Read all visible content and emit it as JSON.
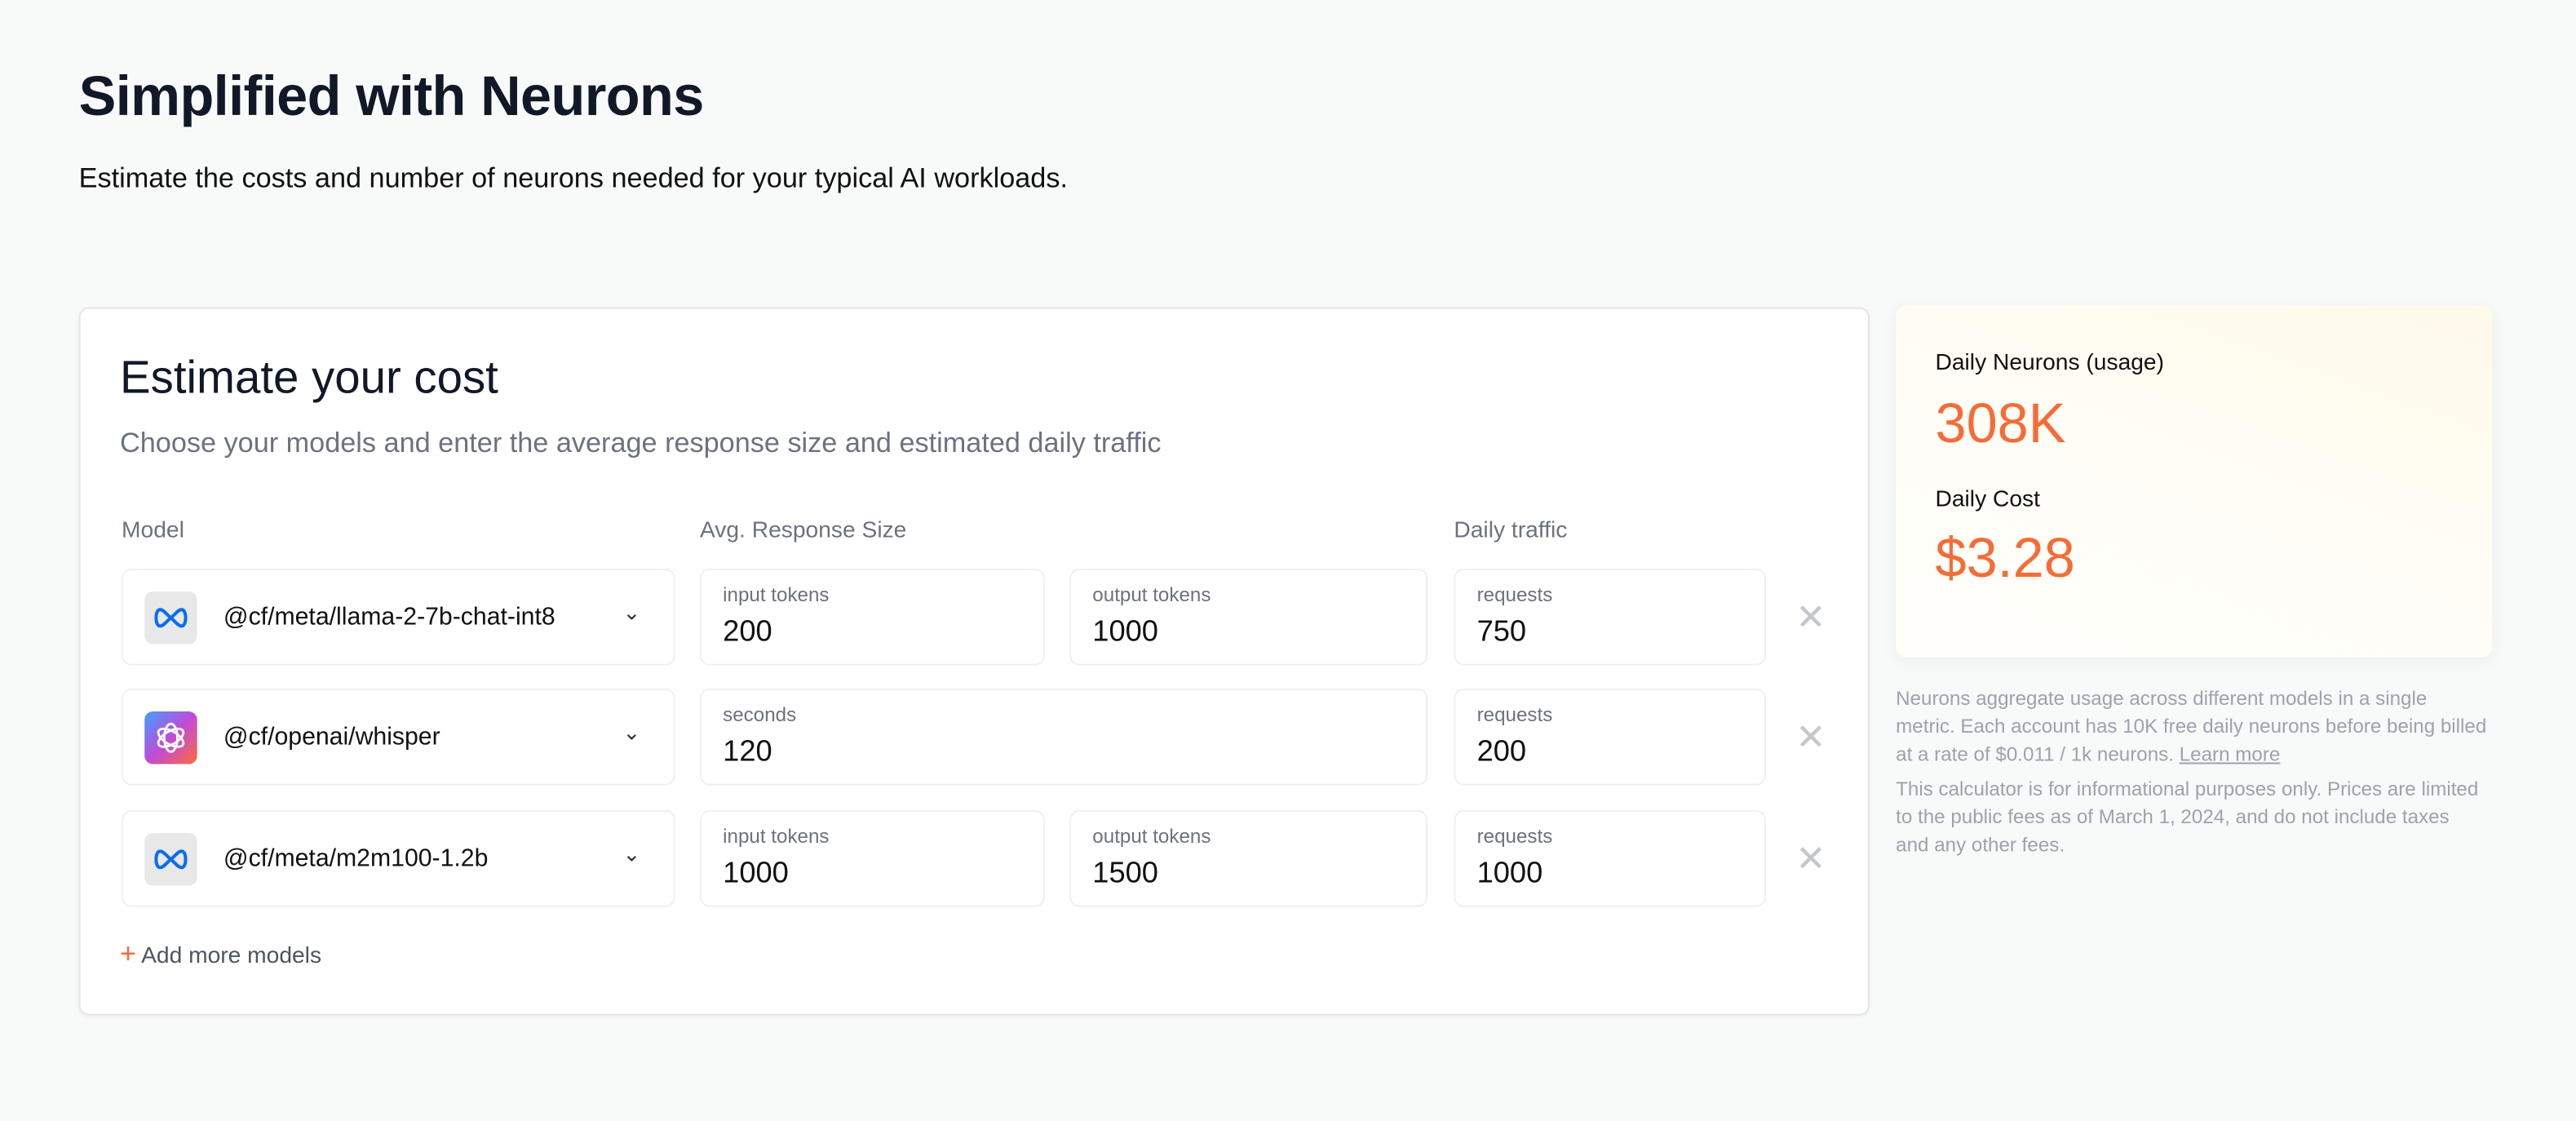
{
  "header": {
    "title": "Simplified with Neurons",
    "subtitle": "Estimate the costs and number of neurons needed for your typical AI workloads."
  },
  "calculator": {
    "title": "Estimate your cost",
    "description": "Choose your models and enter the average response size and estimated daily traffic",
    "columns": {
      "model": "Model",
      "response": "Avg. Response Size",
      "traffic": "Daily traffic"
    },
    "rows": [
      {
        "model": "@cf/meta/llama-2-7b-chat-int8",
        "icon": "meta-icon",
        "fields": [
          {
            "label": "input tokens",
            "value": "200"
          },
          {
            "label": "output tokens",
            "value": "1000"
          }
        ],
        "traffic": {
          "label": "requests",
          "value": "750"
        }
      },
      {
        "model": "@cf/openai/whisper",
        "icon": "openai-icon",
        "fields": [
          {
            "label": "seconds",
            "value": "120"
          }
        ],
        "traffic": {
          "label": "requests",
          "value": "200"
        }
      },
      {
        "model": "@cf/meta/m2m100-1.2b",
        "icon": "meta-icon",
        "fields": [
          {
            "label": "input tokens",
            "value": "1000"
          },
          {
            "label": "output tokens",
            "value": "1500"
          }
        ],
        "traffic": {
          "label": "requests",
          "value": "1000"
        }
      }
    ],
    "add_label": "Add more models"
  },
  "results": {
    "neurons_label": "Daily Neurons (usage)",
    "neurons_value": "308K",
    "cost_label": "Daily Cost",
    "cost_value": "$3.28",
    "accent": "#f76b37"
  },
  "notes": {
    "p1": "Neurons aggregate usage across different models in a single metric. Each account has 10K free daily neurons before being billed at a rate of $0.011 / 1k neurons.",
    "learn_more": "Learn more",
    "p2": "This calculator is for informational purposes only. Prices are limited to the public fees as of March 1, 2024, and do not include taxes and any other fees."
  }
}
